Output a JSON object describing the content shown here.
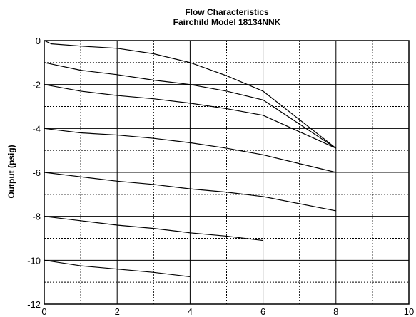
{
  "chart_data": {
    "type": "line",
    "title": "Flow Characteristics",
    "subtitle": "Fairchild Model 18134NNK",
    "xlabel": "",
    "ylabel": "Output (psig)",
    "xlim": [
      0,
      10
    ],
    "ylim": [
      -12,
      0
    ],
    "x_ticks": [
      "0",
      "2",
      "4",
      "6",
      "8",
      "10"
    ],
    "y_ticks": [
      "0",
      "-2",
      "-4",
      "-6",
      "-8",
      "-10",
      "-12"
    ],
    "grid": true,
    "series": [
      {
        "points": [
          [
            0,
            0
          ],
          [
            0.2,
            -0.15
          ],
          [
            1,
            -0.25
          ],
          [
            2,
            -0.35
          ],
          [
            3,
            -0.6
          ],
          [
            4,
            -1.0
          ],
          [
            5,
            -1.6
          ],
          [
            6,
            -2.3
          ],
          [
            8,
            -4.9
          ]
        ]
      },
      {
        "points": [
          [
            0,
            -1
          ],
          [
            1,
            -1.35
          ],
          [
            2,
            -1.55
          ],
          [
            3,
            -1.8
          ],
          [
            4,
            -2.0
          ],
          [
            5,
            -2.3
          ],
          [
            6,
            -2.7
          ],
          [
            8,
            -4.9
          ]
        ]
      },
      {
        "points": [
          [
            0,
            -2
          ],
          [
            1,
            -2.3
          ],
          [
            2,
            -2.5
          ],
          [
            3,
            -2.65
          ],
          [
            4,
            -2.85
          ],
          [
            5,
            -3.1
          ],
          [
            6,
            -3.4
          ],
          [
            8,
            -4.9
          ]
        ]
      },
      {
        "points": [
          [
            0,
            -4
          ],
          [
            0.5,
            -4.1
          ],
          [
            1,
            -4.2
          ],
          [
            2,
            -4.3
          ],
          [
            3,
            -4.45
          ],
          [
            4,
            -4.65
          ],
          [
            5,
            -4.9
          ],
          [
            6,
            -5.2
          ],
          [
            8,
            -6.0
          ]
        ]
      },
      {
        "points": [
          [
            0,
            -6
          ],
          [
            1,
            -6.2
          ],
          [
            2,
            -6.4
          ],
          [
            3,
            -6.55
          ],
          [
            4,
            -6.75
          ],
          [
            5,
            -6.9
          ],
          [
            6,
            -7.1
          ],
          [
            8,
            -7.75
          ]
        ]
      },
      {
        "points": [
          [
            0,
            -8
          ],
          [
            1,
            -8.2
          ],
          [
            2,
            -8.4
          ],
          [
            3,
            -8.55
          ],
          [
            4,
            -8.75
          ],
          [
            5,
            -8.9
          ],
          [
            6,
            -9.1
          ]
        ]
      },
      {
        "points": [
          [
            0,
            -10
          ],
          [
            1,
            -10.25
          ],
          [
            2,
            -10.4
          ],
          [
            3,
            -10.55
          ],
          [
            4,
            -10.75
          ]
        ]
      }
    ]
  }
}
